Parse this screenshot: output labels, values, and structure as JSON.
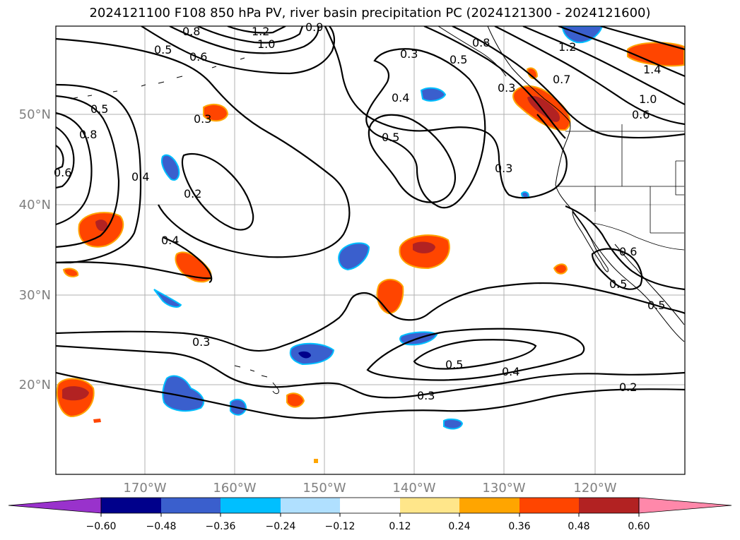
{
  "title": "2024121100 F108 850 hPa PV, river basin precipitation PC (2024121300 - 2024121600)",
  "latitude_labels": [
    "50°N",
    "40°N",
    "30°N",
    "20°N"
  ],
  "longitude_labels": [
    "170°W",
    "160°W",
    "150°W",
    "140°W",
    "130°W",
    "120°W"
  ],
  "contour_labels": [
    "0.8",
    "1.2",
    "1.0",
    "0.9",
    "0.5",
    "0.6",
    "0.5",
    "0.8",
    "0.6",
    "0.4",
    "0.3",
    "0.3",
    "0.4",
    "0.5",
    "0.2",
    "0.4",
    "0.3",
    "0.3",
    "0.5",
    "0.4",
    "0.2",
    "0.3",
    "0.8",
    "0.5",
    "0.7",
    "1.2",
    "1.4",
    "1.0",
    "0.6",
    "0.3",
    "0.6",
    "0.5",
    "0.5"
  ],
  "colorbar": {
    "ticks": [
      "−0.60",
      "−0.48",
      "−0.36",
      "−0.24",
      "−0.12",
      "0.12",
      "0.24",
      "0.36",
      "0.48",
      "0.60"
    ],
    "colors": [
      "#9932cc",
      "#00008b",
      "#3a5fcd",
      "#00bfff",
      "#b0e0ff",
      "#ffffff",
      "#ffe68a",
      "#ffa500",
      "#ff4500",
      "#b22222",
      "#ff88aa"
    ]
  },
  "palette": {
    "neg_dark": "#00008b",
    "neg_mid": "#3a5fcd",
    "neg_light": "#00bfff",
    "pos_yellow": "#ffe68a",
    "pos_orange": "#ffa500",
    "pos_red": "#ff4500",
    "pos_darkred": "#b22222"
  }
}
